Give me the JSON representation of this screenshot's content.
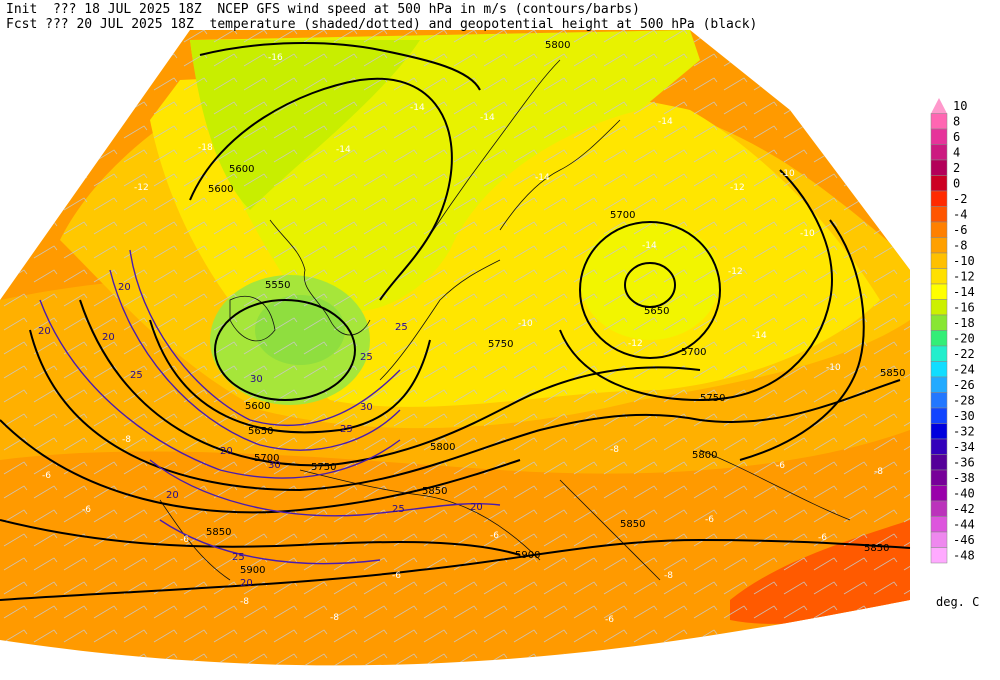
{
  "header": {
    "init_line": "Init  ??? 18 JUL 2025 18Z  NCEP GFS wind speed at 500 hPa in m/s (contours/barbs)",
    "fcst_line": "Fcst ??? 20 JUL 2025 18Z  temperature (shaded/dotted) and geopotential height at 500 hPa (black)"
  },
  "legend": {
    "unit": "deg. C",
    "levels": [
      {
        "label": "10",
        "color": "#ff99cc"
      },
      {
        "label": "8",
        "color": "#ff66b2"
      },
      {
        "label": "6",
        "color": "#e6339a"
      },
      {
        "label": "4",
        "color": "#cc1a80"
      },
      {
        "label": "2",
        "color": "#b30059"
      },
      {
        "label": "0",
        "color": "#cc0022"
      },
      {
        "label": "-2",
        "color": "#ff2a00"
      },
      {
        "label": "-4",
        "color": "#ff5500"
      },
      {
        "label": "-6",
        "color": "#ff8000"
      },
      {
        "label": "-8",
        "color": "#ffa000"
      },
      {
        "label": "-10",
        "color": "#ffc000"
      },
      {
        "label": "-12",
        "color": "#ffe000"
      },
      {
        "label": "-14",
        "color": "#ffff00"
      },
      {
        "label": "-16",
        "color": "#ccf000"
      },
      {
        "label": "-18",
        "color": "#88e633"
      },
      {
        "label": "-20",
        "color": "#33ee77"
      },
      {
        "label": "-22",
        "color": "#22eecc"
      },
      {
        "label": "-24",
        "color": "#11ddff"
      },
      {
        "label": "-26",
        "color": "#22aaff"
      },
      {
        "label": "-28",
        "color": "#2277ff"
      },
      {
        "label": "-30",
        "color": "#1144ff"
      },
      {
        "label": "-32",
        "color": "#0000dd"
      },
      {
        "label": "-34",
        "color": "#3300bb"
      },
      {
        "label": "-36",
        "color": "#550099"
      },
      {
        "label": "-38",
        "color": "#770099"
      },
      {
        "label": "-40",
        "color": "#9900aa"
      },
      {
        "label": "-42",
        "color": "#bb33bb"
      },
      {
        "label": "-44",
        "color": "#dd55dd"
      },
      {
        "label": "-46",
        "color": "#ee88ee"
      },
      {
        "label": "-48",
        "color": "#ffaaff"
      }
    ]
  },
  "map": {
    "height_labels": [
      "5600",
      "5600",
      "5550",
      "5600",
      "5650",
      "5700",
      "5750",
      "5800",
      "5850",
      "5900",
      "5850",
      "5900",
      "5700",
      "5650",
      "5750",
      "5700",
      "5750",
      "5800",
      "5850",
      "5850",
      "5800",
      "5850"
    ],
    "temp_labels": [
      "-16",
      "-18",
      "-14",
      "-14",
      "-14",
      "-14",
      "-12",
      "-12",
      "-10",
      "-10",
      "-12",
      "-14",
      "-12",
      "-14",
      "-14",
      "-10",
      "-8",
      "-6",
      "-6",
      "-6",
      "-8",
      "-8",
      "-8",
      "-6",
      "-6",
      "-6",
      "-6",
      "-8",
      "-8",
      "-10",
      "-6",
      "-6"
    ],
    "wind_labels": [
      "20",
      "20",
      "20",
      "25",
      "25",
      "25",
      "30",
      "30",
      "25",
      "20",
      "20",
      "25",
      "20",
      "25",
      "30",
      "20"
    ]
  }
}
